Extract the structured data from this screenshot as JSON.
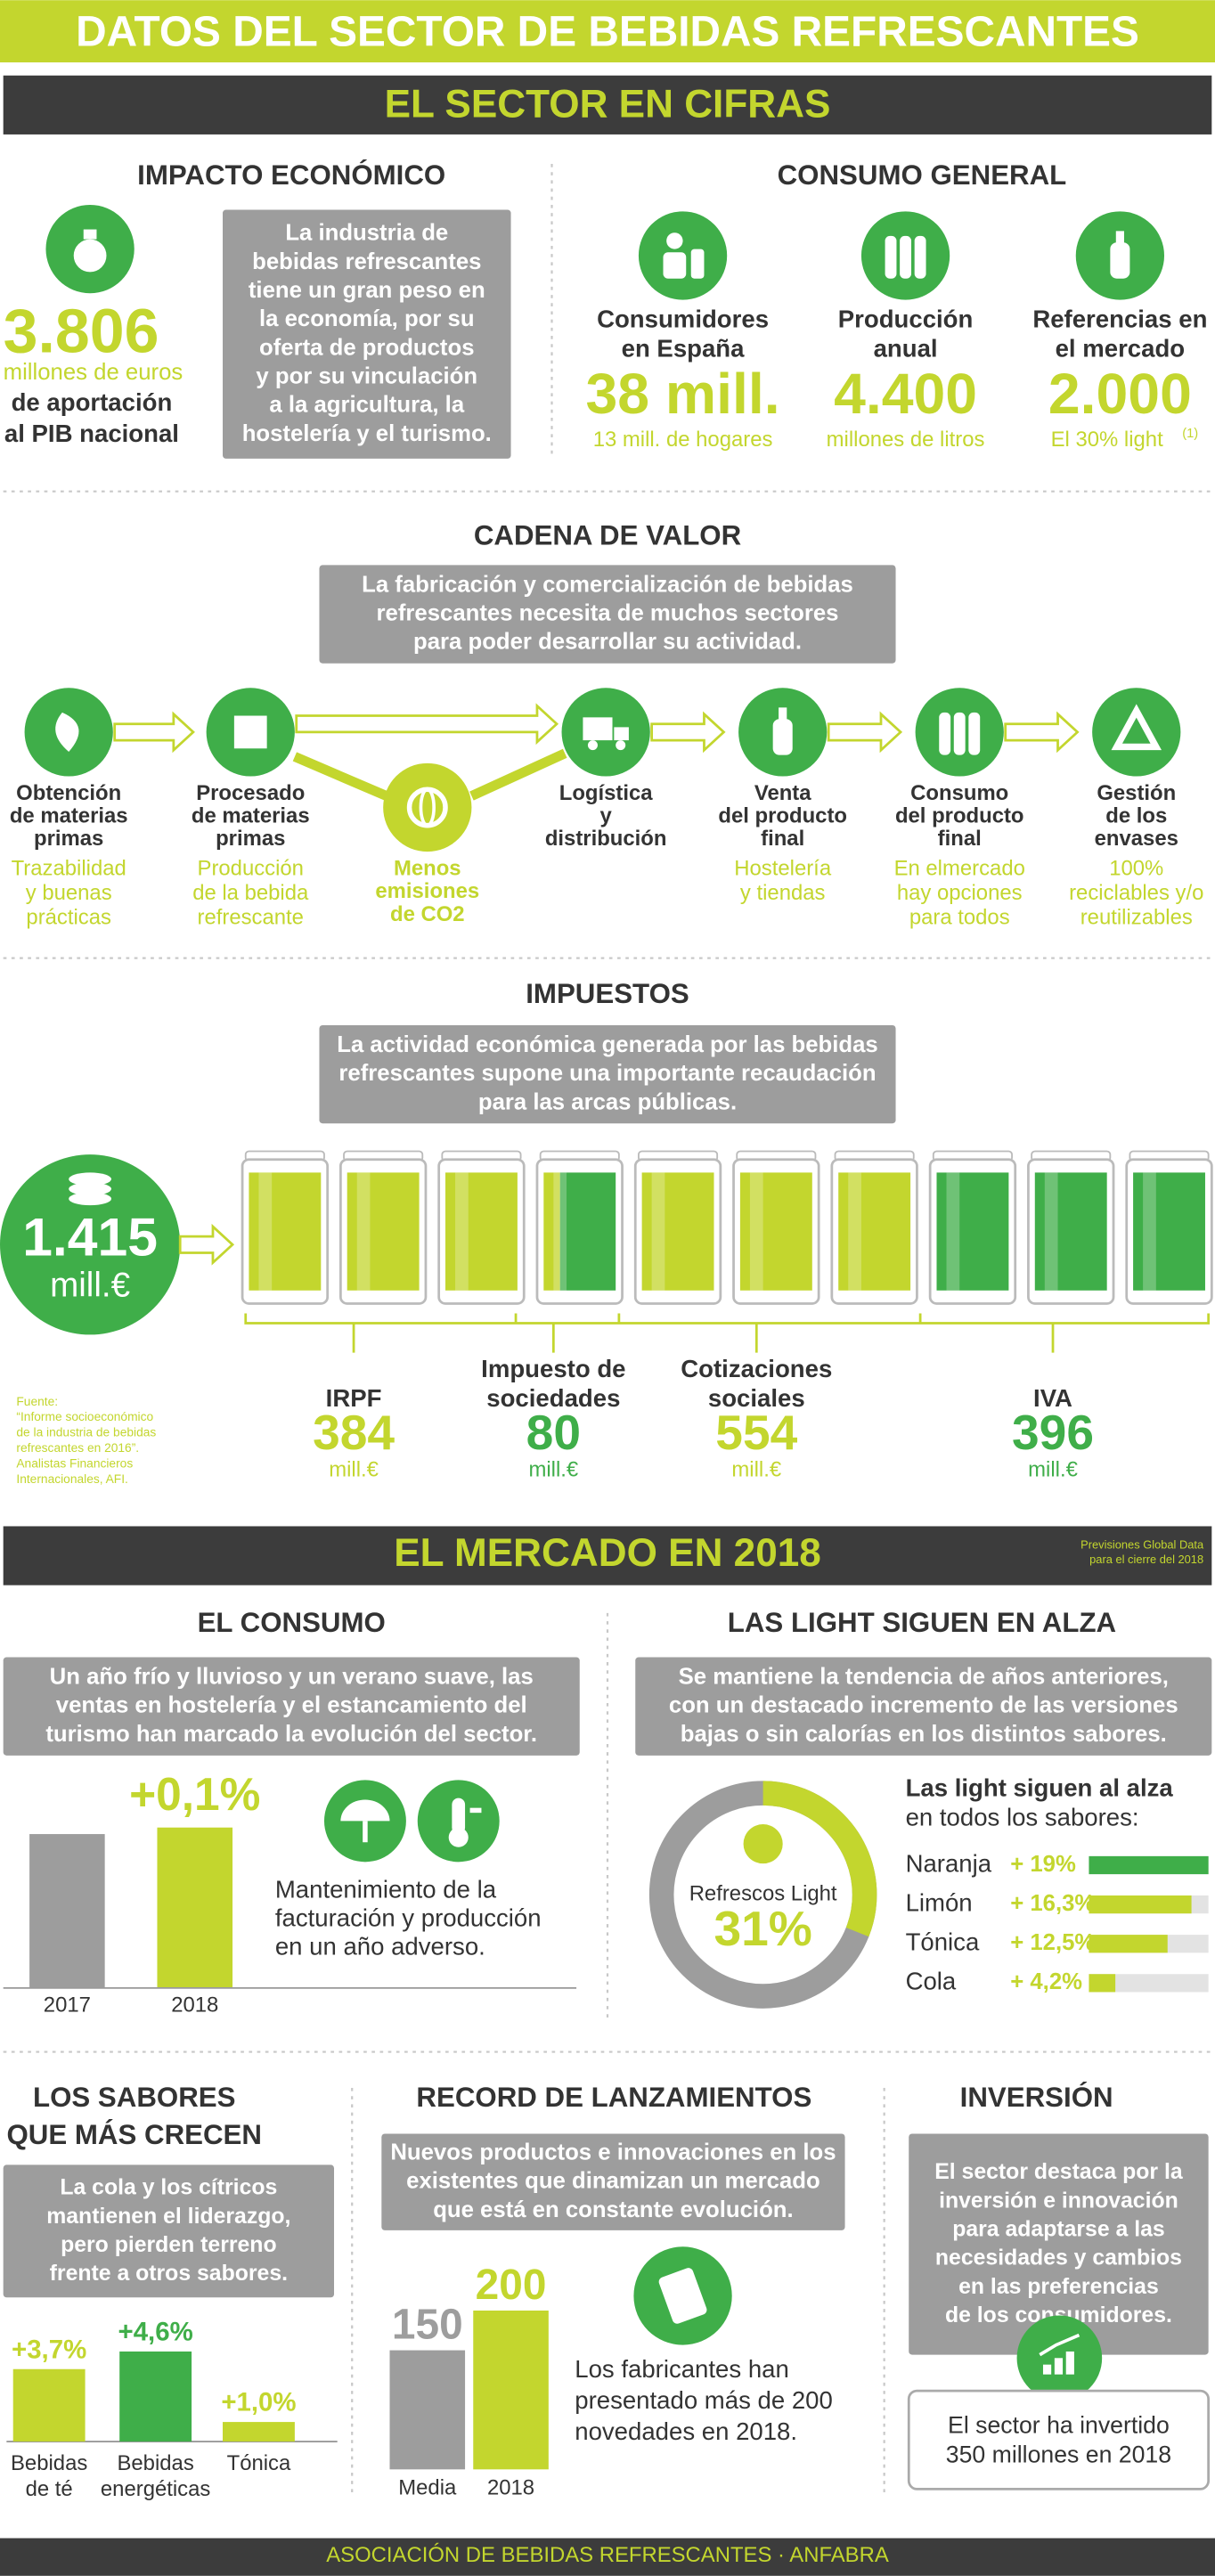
{
  "title": "DATOS DEL SECTOR DE BEBIDAS REFRESCANTES",
  "cifras": {
    "title": "EL SECTOR EN CIFRAS",
    "impacto": {
      "title": "IMPACTO ECONÓMICO",
      "value": "3.806",
      "unit": "millones de euros",
      "desc": [
        "de aportación",
        "al PIB nacional"
      ],
      "text": [
        "La industria de",
        "bebidas refrescantes",
        "tiene un gran peso en",
        "la economía, por su",
        "oferta de productos",
        "y por su vinculación",
        "a la agricultura, la",
        "hostelería y el turismo."
      ]
    },
    "consumo": {
      "title": "CONSUMO GENERAL",
      "items": [
        {
          "label": [
            "Consumidores",
            "en España"
          ],
          "value": "38 mill.",
          "note": "13 mill. de hogares"
        },
        {
          "label": [
            "Producción",
            "anual"
          ],
          "value": "4.400",
          "note": "millones de litros"
        },
        {
          "label": [
            "Referencias en",
            "el mercado"
          ],
          "value": "2.000",
          "note": "El 30% light",
          "sup": "(1)"
        }
      ]
    }
  },
  "cadena": {
    "title": "CADENA DE VALOR",
    "text": [
      "La fabricación y comercialización de bebidas",
      "refrescantes necesita de muchos sectores",
      "para poder desarrollar su actividad."
    ],
    "steps": [
      {
        "label": [
          "Obtención",
          "de materias",
          "primas"
        ],
        "note": [
          "Trazabilidad",
          "y buenas",
          "prácticas"
        ]
      },
      {
        "label": [
          "Procesado",
          "de materias",
          "primas"
        ],
        "note": [
          "Producción",
          "de la bebida",
          "refrescante"
        ]
      },
      {
        "label": [
          "Logística",
          "y",
          "distribución"
        ]
      },
      {
        "label": [
          "Venta",
          "del producto",
          "final"
        ],
        "note": [
          "Hostelería",
          "y tiendas"
        ]
      },
      {
        "label": [
          "Consumo",
          "del producto",
          "final"
        ],
        "note": [
          "En elmercado",
          "hay opciones",
          "para todos"
        ]
      },
      {
        "label": [
          "Gestión",
          "de los",
          "envases"
        ],
        "note": [
          "100%",
          "reciclables y/o",
          "reutilizables"
        ]
      }
    ],
    "center": [
      "Menos",
      "emisiones",
      "de CO2"
    ]
  },
  "impuestos": {
    "title": "IMPUESTOS",
    "text": [
      "La actividad económica generada por las bebidas",
      "refrescantes supone una importante recaudación",
      "para las arcas públicas."
    ],
    "total": "1.415",
    "total_unit": "mill.€",
    "source": [
      "Fuente:",
      "“Informe socioeconómico",
      "de la industria de bebidas",
      "refrescantes en 2016”.",
      "Analistas Financieros",
      "Internacionales, AFI."
    ],
    "items": [
      {
        "name": [
          "IRPF"
        ],
        "value": 384,
        "unit": "mill.€",
        "color": "#c3d62e"
      },
      {
        "name": [
          "Impuesto de",
          "sociedades"
        ],
        "value": 80,
        "unit": "mill.€",
        "color": "#3fae49"
      },
      {
        "name": [
          "Cotizaciones",
          "sociales"
        ],
        "value": 554,
        "unit": "mill.€",
        "color": "#c3d62e"
      },
      {
        "name": [
          "IVA"
        ],
        "value": 396,
        "unit": "mill.€",
        "color": "#3fae49"
      }
    ]
  },
  "mercado": {
    "title": "EL MERCADO EN 2018",
    "note": [
      "Previsiones Global Data",
      "para el cierre del 2018"
    ],
    "consumo": {
      "title": "EL CONSUMO",
      "text": [
        "Un año frío y lluvioso y un verano suave, las",
        "ventas en hostelería y el estancamiento del",
        "turismo han marcado la evolución del sector."
      ],
      "categories": [
        "2017",
        "2018"
      ],
      "change": "+0,1%",
      "caption": [
        "Mantenimiento de la",
        "facturación y producción",
        "en un año adverso."
      ]
    },
    "light": {
      "title": "LAS LIGHT SIGUEN EN ALZA",
      "text": [
        "Se mantiene la tendencia de años anteriores,",
        "con un destacado incremento de las versiones",
        "bajas o sin calorías en los distintos sabores."
      ],
      "donut": {
        "label": "Refrescos Light",
        "value": 31,
        "value_label": "31%"
      },
      "heading": [
        "Las light siguen al alza",
        "en todos los sabores:"
      ],
      "flavors": [
        {
          "name": "Naranja",
          "value": 19,
          "label": "+ 19%",
          "color": "#3fae49"
        },
        {
          "name": "Limón",
          "value": 16.3,
          "label": "+ 16,3%",
          "color": "#c3d62e"
        },
        {
          "name": "Tónica",
          "value": 12.5,
          "label": "+ 12,5%",
          "color": "#c3d62e"
        },
        {
          "name": "Cola",
          "value": 4.2,
          "label": "+ 4,2%",
          "color": "#c3d62e"
        }
      ]
    },
    "sabores": {
      "title": [
        "LOS SABORES",
        "QUE MÁS CRECEN"
      ],
      "text": [
        "La cola y los cítricos",
        "mantienen el liderazgo,",
        "pero pierden terreno",
        "frente a otros sabores."
      ],
      "bars": [
        {
          "name": [
            "Bebidas",
            "de té"
          ],
          "value": 3.7,
          "label": "+3,7%",
          "color": "#c3d62e"
        },
        {
          "name": [
            "Bebidas",
            "energéticas"
          ],
          "value": 4.6,
          "label": "+4,6%",
          "color": "#3fae49"
        },
        {
          "name": [
            "Tónica"
          ],
          "value": 1.0,
          "label": "+1,0%",
          "color": "#c3d62e"
        }
      ]
    },
    "lanzamientos": {
      "title": "RECORD DE LANZAMIENTOS",
      "text": [
        "Nuevos productos e innovaciones en los",
        "existentes que dinamizan un mercado",
        "que está en constante evolución."
      ],
      "bars": [
        {
          "name": "Media",
          "value": 150,
          "color": "#9d9d9d"
        },
        {
          "name": "2018",
          "value": 200,
          "color": "#c3d62e"
        }
      ],
      "caption": [
        "Los fabricantes han",
        "presentado más de 200",
        "novedades en 2018."
      ]
    },
    "inversion": {
      "title": "INVERSIÓN",
      "text": [
        "El sector destaca por la",
        "inversión e innovación",
        "para adaptarse a las",
        "necesidades y cambios",
        "en las preferencias",
        "de los consumidores."
      ],
      "box": [
        "El sector ha invertido",
        "350 millones en 2018"
      ]
    }
  },
  "footer": "ASOCIACIÓN DE BEBIDAS REFRESCANTES · ANFABRA"
}
